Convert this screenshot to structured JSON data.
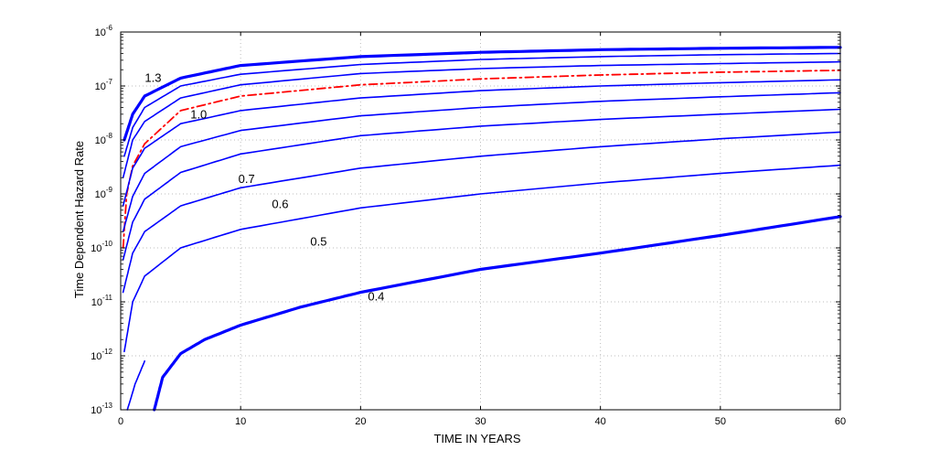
{
  "chart_data": {
    "type": "line",
    "xlabel": "TIME IN YEARS",
    "ylabel": "Time Dependent Hazard Rate",
    "xlim": [
      0,
      60
    ],
    "ylim": [
      1e-13,
      1e-06
    ],
    "yscale": "log",
    "grid": true,
    "x_ticks": [
      "0",
      "10",
      "20",
      "30",
      "40",
      "50",
      "60"
    ],
    "y_ticks": [
      {
        "base": "10",
        "exp": "-13",
        "value": 1e-13
      },
      {
        "base": "10",
        "exp": "-12",
        "value": 1e-12
      },
      {
        "base": "10",
        "exp": "-11",
        "value": 1e-11
      },
      {
        "base": "10",
        "exp": "-10",
        "value": 1e-10
      },
      {
        "base": "10",
        "exp": "-9",
        "value": 1e-09
      },
      {
        "base": "10",
        "exp": "-8",
        "value": 1e-08
      },
      {
        "base": "10",
        "exp": "-7",
        "value": 1e-07
      },
      {
        "base": "10",
        "exp": "-6",
        "value": 1e-06
      }
    ],
    "colors": {
      "blue": "#0000ff",
      "red": "#ff0000",
      "grid": "#bdbdbd"
    },
    "series": [
      {
        "label": "1.3",
        "color": "#0000ff",
        "style": "solid",
        "width": 3.2,
        "x": [
          0.3,
          1,
          2,
          5,
          10,
          20,
          30,
          40,
          50,
          60
        ],
        "y": [
          1e-08,
          3e-08,
          6.5e-08,
          1.4e-07,
          2.4e-07,
          3.5e-07,
          4.2e-07,
          4.7e-07,
          5e-07,
          5.2e-07
        ]
      },
      {
        "label": "",
        "color": "#0000ff",
        "style": "solid",
        "width": 1.6,
        "x": [
          0.3,
          1,
          2,
          5,
          10,
          20,
          30,
          40,
          50,
          60
        ],
        "y": [
          5e-09,
          1.7e-08,
          4e-08,
          1e-07,
          1.65e-07,
          2.5e-07,
          3.1e-07,
          3.5e-07,
          3.8e-07,
          4e-07
        ]
      },
      {
        "label": "",
        "color": "#0000ff",
        "style": "solid",
        "width": 1.6,
        "x": [
          0.2,
          1,
          2,
          5,
          10,
          20,
          30,
          40,
          50,
          60
        ],
        "y": [
          2e-09,
          1e-08,
          2.2e-08,
          6e-08,
          1.05e-07,
          1.7e-07,
          2.1e-07,
          2.4e-07,
          2.6e-07,
          2.8e-07
        ]
      },
      {
        "label": "1.0",
        "color": "#ff0000",
        "style": "dashdot",
        "width": 1.8,
        "x": [
          0.2,
          0.5,
          1,
          2,
          5,
          10,
          20,
          30,
          40,
          50,
          60
        ],
        "y": [
          1e-10,
          1e-09,
          3.3e-09,
          8.5e-09,
          3.5e-08,
          6.5e-08,
          1.05e-07,
          1.35e-07,
          1.6e-07,
          1.8e-07,
          1.95e-07
        ]
      },
      {
        "label": "",
        "color": "#0000ff",
        "style": "solid",
        "width": 1.6,
        "x": [
          0.2,
          1,
          2,
          5,
          10,
          20,
          30,
          40,
          50,
          60
        ],
        "y": [
          6e-10,
          3e-09,
          7e-09,
          2e-08,
          3.5e-08,
          6e-08,
          8.2e-08,
          1e-07,
          1.15e-07,
          1.3e-07
        ]
      },
      {
        "label": "",
        "color": "#0000ff",
        "style": "solid",
        "width": 1.6,
        "x": [
          0.2,
          1,
          2,
          5,
          10,
          20,
          30,
          40,
          50,
          60
        ],
        "y": [
          2e-10,
          9e-10,
          2.4e-09,
          7.5e-09,
          1.5e-08,
          2.8e-08,
          4e-08,
          5.2e-08,
          6.3e-08,
          7.5e-08
        ]
      },
      {
        "label": "0.7",
        "color": "#0000ff",
        "style": "solid",
        "width": 1.6,
        "x": [
          0.2,
          1,
          2,
          5,
          10,
          20,
          30,
          40,
          50,
          60
        ],
        "y": [
          6e-11,
          3e-10,
          8e-10,
          2.5e-09,
          5.5e-09,
          1.2e-08,
          1.8e-08,
          2.4e-08,
          3e-08,
          3.7e-08
        ]
      },
      {
        "label": "0.6",
        "color": "#0000ff",
        "style": "solid",
        "width": 1.6,
        "x": [
          0.2,
          1,
          2,
          5,
          10,
          20,
          30,
          40,
          50,
          60
        ],
        "y": [
          1.5e-11,
          8e-11,
          2e-10,
          6e-10,
          1.3e-09,
          3e-09,
          5e-09,
          7.5e-09,
          1.05e-08,
          1.4e-08
        ]
      },
      {
        "label": "0.5",
        "color": "#0000ff",
        "style": "solid",
        "width": 1.6,
        "x": [
          0.3,
          1,
          2,
          5,
          10,
          20,
          30,
          40,
          50,
          60
        ],
        "y": [
          1.2e-12,
          1e-11,
          3e-11,
          1e-10,
          2.2e-10,
          5.5e-10,
          1e-09,
          1.6e-09,
          2.4e-09,
          3.4e-09
        ]
      },
      {
        "label": "0.4",
        "color": "#0000ff",
        "style": "solid",
        "width": 3.2,
        "x": [
          2.8,
          3.5,
          5,
          7,
          10,
          15,
          20,
          30,
          40,
          50,
          60
        ],
        "y": [
          1e-13,
          4e-13,
          1.1e-12,
          2e-12,
          3.7e-12,
          8e-12,
          1.5e-11,
          4e-11,
          8e-11,
          1.7e-10,
          3.8e-10
        ]
      },
      {
        "label": "",
        "color": "#0000ff",
        "style": "solid",
        "width": 1.6,
        "x": [
          0.55,
          0.8,
          1.2,
          2
        ],
        "y": [
          1e-13,
          1.5e-13,
          3e-13,
          8e-13
        ]
      }
    ],
    "annotations": [
      {
        "text": "1.3",
        "x": 2.7,
        "y": 1.2e-07
      },
      {
        "text": "1.0",
        "x": 6.5,
        "y": 2.5e-08
      },
      {
        "text": "0.7",
        "x": 10.5,
        "y": 1.6e-09
      },
      {
        "text": "0.6",
        "x": 13.3,
        "y": 5.5e-10
      },
      {
        "text": "0.5",
        "x": 16.5,
        "y": 1.1e-10
      },
      {
        "text": "0.4",
        "x": 21.3,
        "y": 1.05e-11
      }
    ]
  }
}
